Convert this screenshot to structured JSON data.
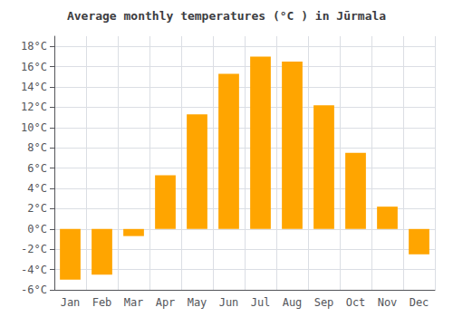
{
  "chart_data": {
    "type": "bar",
    "title": "Average monthly temperatures (°C ) in Jūrmala",
    "categories": [
      "Jan",
      "Feb",
      "Mar",
      "Apr",
      "May",
      "Jun",
      "Jul",
      "Aug",
      "Sep",
      "Oct",
      "Nov",
      "Dec"
    ],
    "values": [
      -5.0,
      -4.5,
      -0.7,
      5.3,
      11.3,
      15.3,
      17.0,
      16.5,
      12.2,
      7.5,
      2.2,
      -2.5
    ],
    "color": "#FFA500",
    "ylim": [
      -6,
      19
    ],
    "yticks": [
      {
        "value": -6,
        "label": "-6°C"
      },
      {
        "value": -4,
        "label": "-4°C"
      },
      {
        "value": -2,
        "label": "-2°C"
      },
      {
        "value": 0,
        "label": "0°C"
      },
      {
        "value": 2,
        "label": "2°C"
      },
      {
        "value": 4,
        "label": "4°C"
      },
      {
        "value": 6,
        "label": "6°C"
      },
      {
        "value": 8,
        "label": "8°C"
      },
      {
        "value": 10,
        "label": "10°C"
      },
      {
        "value": 12,
        "label": "12°C"
      },
      {
        "value": 14,
        "label": "14°C"
      },
      {
        "value": 16,
        "label": "16°C"
      },
      {
        "value": 18,
        "label": "18°C"
      }
    ],
    "grid": true
  }
}
